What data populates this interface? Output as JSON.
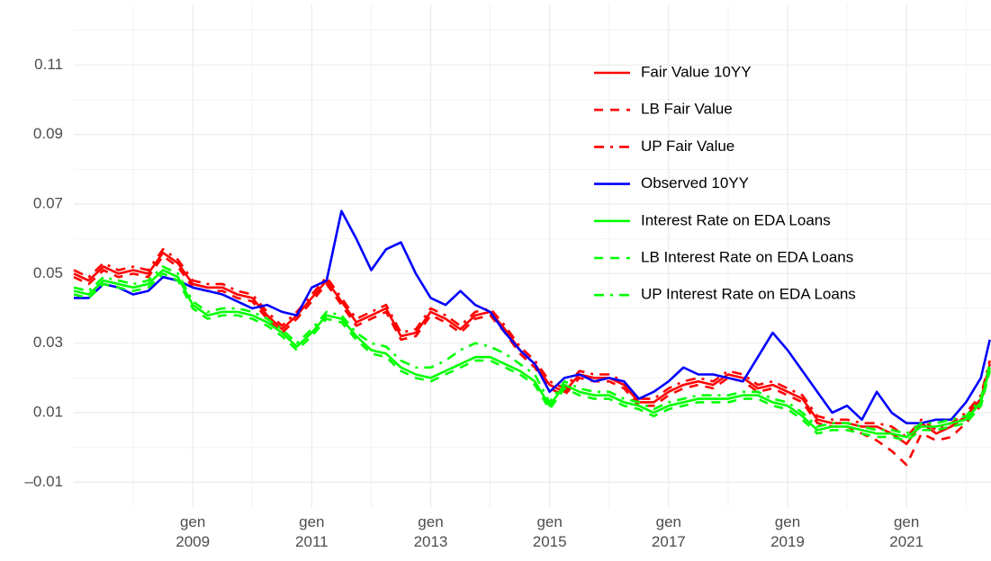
{
  "chart_data": {
    "type": "line",
    "x": [
      2007,
      2007.25,
      2007.5,
      2007.75,
      2008,
      2008.25,
      2008.5,
      2008.75,
      2009,
      2009.25,
      2009.5,
      2009.75,
      2010,
      2010.25,
      2010.5,
      2010.75,
      2011,
      2011.25,
      2011.5,
      2011.75,
      2012,
      2012.25,
      2012.5,
      2012.75,
      2013,
      2013.25,
      2013.5,
      2013.75,
      2014,
      2014.25,
      2014.5,
      2014.75,
      2015,
      2015.25,
      2015.5,
      2015.75,
      2016,
      2016.25,
      2016.5,
      2016.75,
      2017,
      2017.25,
      2017.5,
      2017.75,
      2018,
      2018.25,
      2018.5,
      2018.75,
      2019,
      2019.25,
      2019.5,
      2019.75,
      2020,
      2020.25,
      2020.5,
      2020.75,
      2021,
      2021.25,
      2021.5,
      2021.75,
      2022,
      2022.25,
      2022.4
    ],
    "series": [
      {
        "name": "Fair Value 10YY",
        "color": "#ff0000",
        "linetype": "solid",
        "values": [
          0.05,
          0.048,
          0.052,
          0.05,
          0.051,
          0.05,
          0.056,
          0.053,
          0.047,
          0.046,
          0.046,
          0.044,
          0.043,
          0.038,
          0.034,
          0.038,
          0.043,
          0.048,
          0.042,
          0.036,
          0.038,
          0.04,
          0.032,
          0.033,
          0.039,
          0.037,
          0.034,
          0.038,
          0.039,
          0.034,
          0.028,
          0.024,
          0.018,
          0.016,
          0.021,
          0.02,
          0.02,
          0.018,
          0.013,
          0.013,
          0.016,
          0.018,
          0.019,
          0.018,
          0.021,
          0.02,
          0.017,
          0.018,
          0.016,
          0.014,
          0.008,
          0.007,
          0.007,
          0.006,
          0.006,
          0.004,
          0.001,
          0.007,
          0.004,
          0.006,
          0.009,
          0.014,
          0.024
        ]
      },
      {
        "name": "LB Fair Value",
        "color": "#ff0000",
        "linetype": "dashed",
        "values": [
          0.049,
          0.047,
          0.051,
          0.049,
          0.05,
          0.049,
          0.055,
          0.052,
          0.046,
          0.045,
          0.045,
          0.043,
          0.042,
          0.037,
          0.033,
          0.037,
          0.042,
          0.047,
          0.041,
          0.035,
          0.037,
          0.039,
          0.031,
          0.032,
          0.038,
          0.036,
          0.033,
          0.037,
          0.038,
          0.033,
          0.027,
          0.023,
          0.017,
          0.015,
          0.02,
          0.019,
          0.019,
          0.017,
          0.012,
          0.012,
          0.015,
          0.017,
          0.018,
          0.017,
          0.02,
          0.019,
          0.016,
          0.017,
          0.015,
          0.013,
          0.007,
          0.006,
          0.006,
          0.004,
          0.002,
          -0.001,
          -0.005,
          0.004,
          0.002,
          0.003,
          0.007,
          0.012,
          0.023
        ]
      },
      {
        "name": "UP Fair Value",
        "color": "#ff0000",
        "linetype": "dotdash",
        "values": [
          0.051,
          0.049,
          0.053,
          0.051,
          0.052,
          0.051,
          0.057,
          0.054,
          0.048,
          0.047,
          0.047,
          0.045,
          0.044,
          0.039,
          0.035,
          0.039,
          0.044,
          0.049,
          0.043,
          0.037,
          0.039,
          0.041,
          0.033,
          0.034,
          0.04,
          0.038,
          0.035,
          0.039,
          0.04,
          0.035,
          0.029,
          0.025,
          0.019,
          0.017,
          0.022,
          0.021,
          0.021,
          0.019,
          0.014,
          0.014,
          0.017,
          0.019,
          0.02,
          0.019,
          0.022,
          0.021,
          0.018,
          0.019,
          0.017,
          0.015,
          0.009,
          0.008,
          0.008,
          0.007,
          0.007,
          0.006,
          0.003,
          0.008,
          0.005,
          0.007,
          0.01,
          0.015,
          0.025
        ]
      },
      {
        "name": "Observed 10YY",
        "color": "#0000ff",
        "linetype": "solid",
        "values": [
          0.043,
          0.043,
          0.047,
          0.046,
          0.044,
          0.045,
          0.049,
          0.048,
          0.046,
          0.045,
          0.044,
          0.042,
          0.04,
          0.041,
          0.039,
          0.038,
          0.046,
          0.048,
          0.068,
          0.06,
          0.051,
          0.057,
          0.059,
          0.05,
          0.043,
          0.041,
          0.045,
          0.041,
          0.039,
          0.033,
          0.028,
          0.024,
          0.016,
          0.02,
          0.021,
          0.019,
          0.02,
          0.019,
          0.014,
          0.016,
          0.019,
          0.023,
          0.021,
          0.021,
          0.02,
          0.019,
          0.026,
          0.033,
          0.028,
          0.022,
          0.016,
          0.01,
          0.012,
          0.008,
          0.016,
          0.01,
          0.007,
          0.007,
          0.008,
          0.008,
          0.013,
          0.02,
          0.031
        ]
      },
      {
        "name": "Interest Rate on EDA Loans",
        "color": "#00ff00",
        "linetype": "solid",
        "values": [
          0.045,
          0.044,
          0.048,
          0.047,
          0.046,
          0.047,
          0.051,
          0.049,
          0.041,
          0.038,
          0.039,
          0.039,
          0.038,
          0.036,
          0.033,
          0.029,
          0.033,
          0.038,
          0.037,
          0.032,
          0.028,
          0.027,
          0.023,
          0.021,
          0.02,
          0.022,
          0.024,
          0.026,
          0.026,
          0.024,
          0.022,
          0.019,
          0.012,
          0.018,
          0.016,
          0.015,
          0.015,
          0.013,
          0.012,
          0.01,
          0.012,
          0.013,
          0.014,
          0.014,
          0.014,
          0.015,
          0.015,
          0.013,
          0.012,
          0.009,
          0.005,
          0.006,
          0.006,
          0.005,
          0.004,
          0.004,
          0.003,
          0.006,
          0.006,
          0.007,
          0.008,
          0.013,
          0.023
        ]
      },
      {
        "name": "LB Interest Rate on EDA Loans",
        "color": "#00ff00",
        "linetype": "dashed",
        "values": [
          0.044,
          0.043,
          0.047,
          0.046,
          0.045,
          0.046,
          0.05,
          0.048,
          0.04,
          0.037,
          0.038,
          0.038,
          0.037,
          0.035,
          0.032,
          0.028,
          0.032,
          0.037,
          0.036,
          0.031,
          0.027,
          0.026,
          0.022,
          0.02,
          0.019,
          0.021,
          0.023,
          0.025,
          0.025,
          0.023,
          0.021,
          0.018,
          0.011,
          0.017,
          0.015,
          0.014,
          0.014,
          0.012,
          0.011,
          0.009,
          0.011,
          0.012,
          0.013,
          0.013,
          0.013,
          0.014,
          0.014,
          0.012,
          0.011,
          0.008,
          0.004,
          0.005,
          0.005,
          0.004,
          0.003,
          0.003,
          0.002,
          0.005,
          0.005,
          0.006,
          0.007,
          0.012,
          0.022
        ]
      },
      {
        "name": "UP Interest Rate on EDA Loans",
        "color": "#00ff00",
        "linetype": "dotdash",
        "values": [
          0.046,
          0.045,
          0.049,
          0.048,
          0.047,
          0.048,
          0.052,
          0.05,
          0.042,
          0.039,
          0.04,
          0.04,
          0.039,
          0.037,
          0.034,
          0.03,
          0.034,
          0.039,
          0.038,
          0.033,
          0.03,
          0.029,
          0.025,
          0.023,
          0.023,
          0.025,
          0.028,
          0.03,
          0.029,
          0.027,
          0.024,
          0.021,
          0.013,
          0.019,
          0.017,
          0.016,
          0.016,
          0.014,
          0.013,
          0.011,
          0.013,
          0.014,
          0.015,
          0.015,
          0.015,
          0.016,
          0.016,
          0.014,
          0.013,
          0.01,
          0.006,
          0.007,
          0.007,
          0.006,
          0.005,
          0.005,
          0.004,
          0.007,
          0.007,
          0.008,
          0.009,
          0.014,
          0.024
        ]
      }
    ],
    "xlim": [
      2007,
      2022.42
    ],
    "xticks": [
      {
        "value": 2009,
        "label": "gen\n2009"
      },
      {
        "value": 2011,
        "label": "gen\n2011"
      },
      {
        "value": 2013,
        "label": "gen\n2013"
      },
      {
        "value": 2015,
        "label": "gen\n2015"
      },
      {
        "value": 2017,
        "label": "gen\n2017"
      },
      {
        "value": 2019,
        "label": "gen\n2019"
      },
      {
        "value": 2021,
        "label": "gen\n2021"
      }
    ],
    "ylim": [
      -0.0174,
      0.1274
    ],
    "yticks": [
      {
        "value": -0.01,
        "label": "–0.01"
      },
      0.01,
      0.03,
      0.05,
      0.07,
      0.09,
      0.11
    ],
    "grid": true,
    "legend": "top-right"
  }
}
